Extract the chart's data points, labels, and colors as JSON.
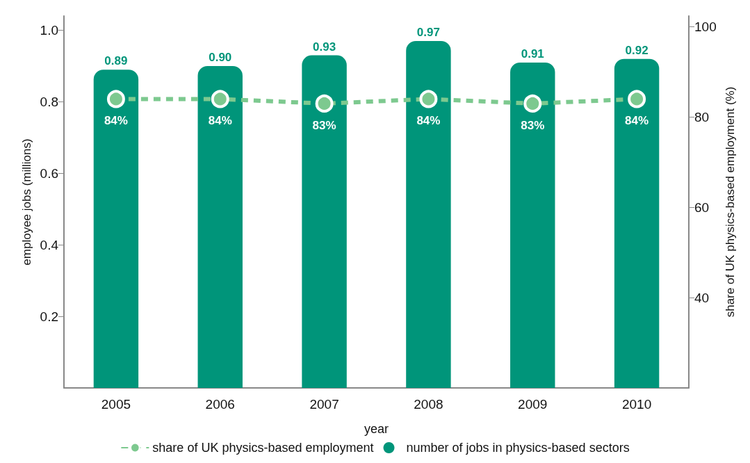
{
  "chart_data": {
    "type": "bar",
    "xlabel": "year",
    "ylabel": "employee jobs (millions)",
    "y2label": "share of UK physics-based employment (%)",
    "categories": [
      "2005",
      "2006",
      "2007",
      "2008",
      "2009",
      "2010"
    ],
    "series": [
      {
        "name": "share of UK physics-based employment",
        "type": "line",
        "axis": "y2",
        "color": "#7dc98f",
        "line_style": "dashed",
        "marker": "circle",
        "values": [
          84,
          84,
          83,
          84,
          83,
          84
        ],
        "value_labels": [
          "84%",
          "84%",
          "83%",
          "84%",
          "83%",
          "84%"
        ]
      },
      {
        "name": "number of jobs in physics-based sectors",
        "color": "#00957a",
        "values": [
          0.89,
          0.9,
          0.93,
          0.97,
          0.91,
          0.92
        ],
        "value_labels": [
          "0.89",
          "0.90",
          "0.93",
          "0.97",
          "0.91",
          "0.92"
        ]
      }
    ],
    "ylim": [
      0,
      1.04
    ],
    "yticks": [
      0.2,
      0.4,
      0.6,
      0.8,
      {
        "value": 1,
        "label": "1.0"
      }
    ],
    "y2lim": [
      20,
      102.4
    ],
    "y2ticks": [
      40,
      60,
      80,
      100
    ],
    "grid": false,
    "legend": "bottom"
  }
}
